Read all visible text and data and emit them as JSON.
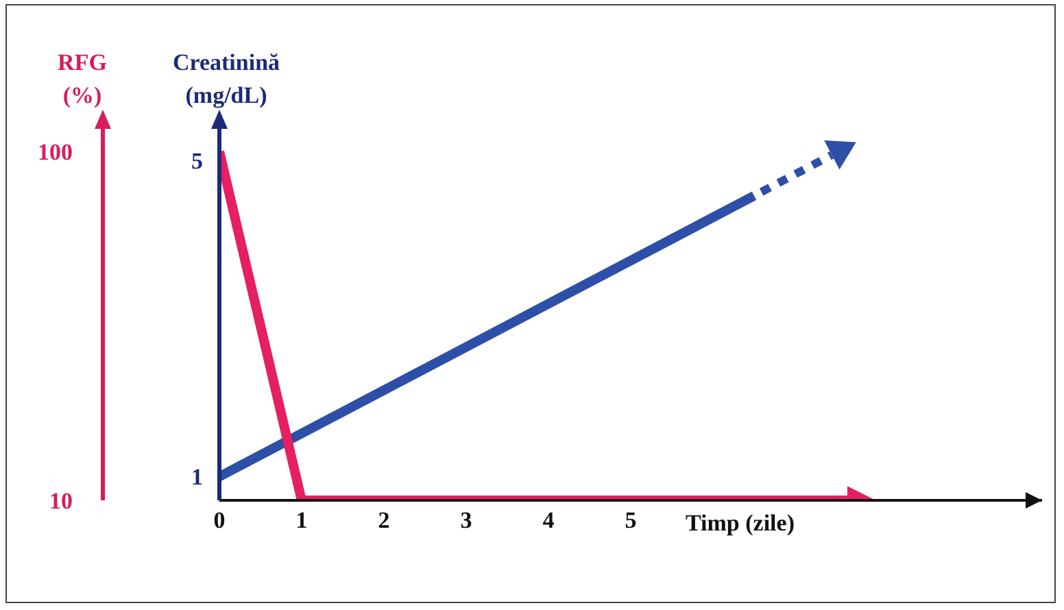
{
  "chart_data": {
    "type": "line",
    "xlabel": "Timp (zile)",
    "ylabel": "Creatinină (mg/dL)",
    "y2label": "RFG (%)",
    "xlim": [
      0,
      10
    ],
    "xticks": [
      0,
      1,
      2,
      3,
      4,
      5
    ],
    "ylim": [
      0.7,
      5.5
    ],
    "yticks": [
      1,
      5
    ],
    "y2lim": [
      10,
      108
    ],
    "y2ticks": [
      10,
      100
    ],
    "marker": "none",
    "series": [
      {
        "color": "#2e4fa8",
        "x": [
          0,
          6.5
        ],
        "values": [
          1,
          4.55
        ],
        "line_style": "solid"
      },
      {
        "color": "#e61e62",
        "x": [
          0,
          1,
          7.7
        ],
        "values": [
          100,
          10,
          10
        ],
        "axis": "y2",
        "line_style": "solid"
      }
    ]
  }
}
